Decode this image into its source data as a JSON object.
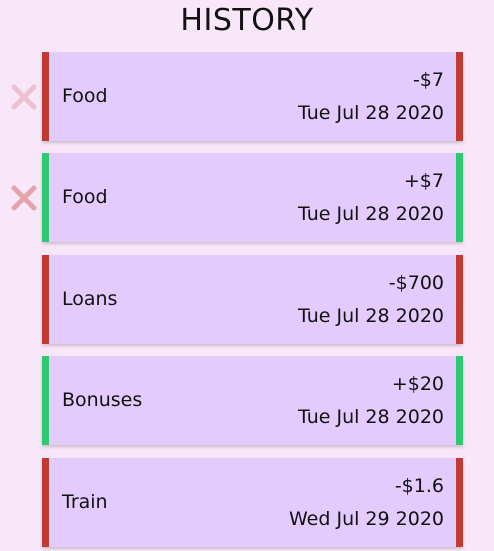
{
  "header": {
    "title": "HISTORY"
  },
  "transactions": [
    {
      "category": "Food",
      "amount": "-$7",
      "date": "Tue Jul 28 2020",
      "type": "expense"
    },
    {
      "category": "Food",
      "amount": "+$7",
      "date": "Tue Jul 28 2020",
      "type": "income"
    },
    {
      "category": "Loans",
      "amount": "-$700",
      "date": "Tue Jul 28 2020",
      "type": "expense"
    },
    {
      "category": "Bonuses",
      "amount": "+$20",
      "date": "Tue Jul 28 2020",
      "type": "income"
    },
    {
      "category": "Train",
      "amount": "-$1.6",
      "date": "Wed Jul 29 2020",
      "type": "expense"
    }
  ],
  "icons": {
    "delete": "close-icon"
  },
  "colors": {
    "background": "#f8e7f9",
    "card": "#e3cbfd",
    "expense": "#c23b33",
    "income": "#2ec971",
    "delete_icon": "#e6a3ab"
  }
}
